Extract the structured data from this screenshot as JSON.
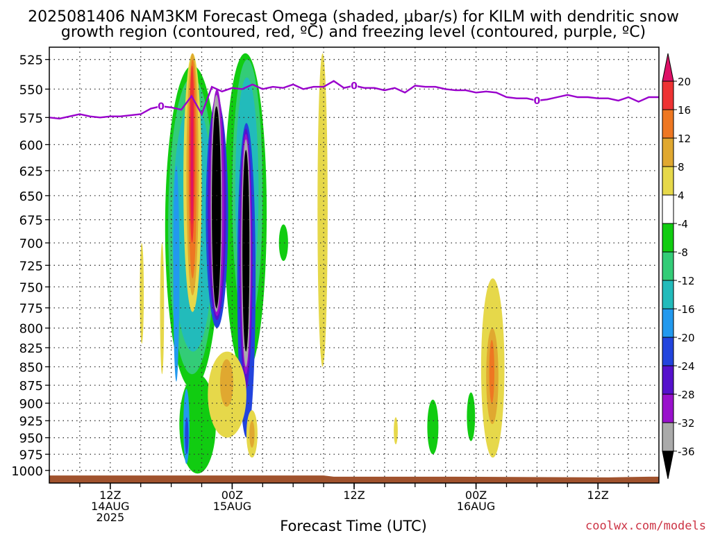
{
  "title_line1": "2025081406 NAM3KM Forecast Omega (shaded, μbar/s) for KILM with dendritic snow",
  "title_line2": "growth region (contoured, red, ºC) and freezing level (contoured, purple, ºC)",
  "watermark": "coolwx.com/models",
  "colors": {
    "freezing_line": "#9900cc",
    "terrain": "#a0522d",
    "watermark": "#cc3344"
  },
  "chart_data": {
    "type": "heatmap",
    "xlabel": "Forecast Time (UTC)",
    "x_ticks": [
      {
        "t": 6,
        "lines": [
          "12Z",
          "14AUG",
          "2025"
        ]
      },
      {
        "t": 18,
        "lines": [
          "00Z",
          "15AUG"
        ]
      },
      {
        "t": 30,
        "lines": [
          "12Z"
        ]
      },
      {
        "t": 42,
        "lines": [
          "00Z",
          "16AUG"
        ]
      },
      {
        "t": 54,
        "lines": [
          "12Z"
        ]
      }
    ],
    "x_range_hours": [
      0,
      60
    ],
    "y_ticks": [
      525,
      550,
      575,
      600,
      625,
      650,
      675,
      700,
      725,
      750,
      775,
      800,
      825,
      850,
      875,
      900,
      925,
      950,
      975,
      1000
    ],
    "y_range_mb": [
      515,
      1020
    ],
    "y_scale": "log",
    "grid": true,
    "colorbar": {
      "labels": [
        "20",
        "16",
        "12",
        "8",
        "4",
        "-4",
        "-8",
        "-12",
        "-16",
        "-20",
        "-24",
        "-28",
        "-32",
        "-36"
      ],
      "bands": [
        {
          "color": "#dd1166"
        },
        {
          "color": "#ee3333"
        },
        {
          "color": "#ee7722"
        },
        {
          "color": "#e0a830"
        },
        {
          "color": "#e6d84a"
        },
        {
          "color": "#ffffff"
        },
        {
          "color": "#11cc11"
        },
        {
          "color": "#33cc77"
        },
        {
          "color": "#22bbbb"
        },
        {
          "color": "#2299ee"
        },
        {
          "color": "#2244dd"
        },
        {
          "color": "#5511cc"
        },
        {
          "color": "#9911cc"
        },
        {
          "color": "#aaaaaa"
        },
        {
          "color": "#000000"
        }
      ]
    },
    "freezing_level": {
      "label": "0",
      "label_at_hours": [
        11,
        30,
        48
      ],
      "points_hours_mb": [
        [
          0,
          575
        ],
        [
          1,
          576
        ],
        [
          2,
          574
        ],
        [
          3,
          572
        ],
        [
          4,
          574
        ],
        [
          5,
          575
        ],
        [
          6,
          574
        ],
        [
          7,
          574
        ],
        [
          8,
          573
        ],
        [
          9,
          572
        ],
        [
          10,
          567
        ],
        [
          11,
          565
        ],
        [
          12,
          566
        ],
        [
          13,
          568
        ],
        [
          14,
          556
        ],
        [
          15,
          572
        ],
        [
          16,
          548
        ],
        [
          17,
          552
        ],
        [
          18,
          549
        ],
        [
          19,
          550
        ],
        [
          20,
          546
        ],
        [
          21,
          550
        ],
        [
          22,
          548
        ],
        [
          23,
          549
        ],
        [
          24,
          546
        ],
        [
          25,
          550
        ],
        [
          26,
          548
        ],
        [
          27,
          548
        ],
        [
          28,
          543
        ],
        [
          29,
          549
        ],
        [
          30,
          547
        ],
        [
          31,
          549
        ],
        [
          32,
          549
        ],
        [
          33,
          551
        ],
        [
          34,
          549
        ],
        [
          35,
          553
        ],
        [
          36,
          547
        ],
        [
          37,
          548
        ],
        [
          38,
          548
        ],
        [
          39,
          550
        ],
        [
          40,
          551
        ],
        [
          41,
          551
        ],
        [
          42,
          553
        ],
        [
          43,
          552
        ],
        [
          44,
          553
        ],
        [
          45,
          557
        ],
        [
          46,
          558
        ],
        [
          47,
          558
        ],
        [
          48,
          560
        ],
        [
          49,
          559
        ],
        [
          50,
          557
        ],
        [
          51,
          555
        ],
        [
          52,
          557
        ],
        [
          53,
          557
        ],
        [
          54,
          558
        ],
        [
          55,
          558
        ],
        [
          56,
          560
        ],
        [
          57,
          557
        ],
        [
          58,
          561
        ],
        [
          59,
          557
        ],
        [
          60,
          557
        ]
      ]
    },
    "terrain_surface_mb": [
      [
        0,
        1008
      ],
      [
        27,
        1008
      ],
      [
        28,
        1010
      ],
      [
        40,
        1010
      ],
      [
        55,
        1011
      ],
      [
        59,
        1010
      ],
      [
        60,
        1010
      ]
    ],
    "omega_regions": [
      {
        "value": -6,
        "hours": [
          11.4,
          16.8
        ],
        "mb": [
          530,
          880
        ]
      },
      {
        "value": -6,
        "hours": [
          12.8,
          16.4
        ],
        "mb": [
          860,
          1005
        ]
      },
      {
        "value": -6,
        "hours": [
          17.2,
          21.4
        ],
        "mb": [
          520,
          860
        ]
      },
      {
        "value": -6,
        "hours": [
          22.6,
          23.5
        ],
        "mb": [
          680,
          720
        ]
      },
      {
        "value": -6,
        "hours": [
          37.2,
          38.3
        ],
        "mb": [
          895,
          975
        ]
      },
      {
        "value": -6,
        "hours": [
          41.1,
          41.9
        ],
        "mb": [
          885,
          955
        ]
      },
      {
        "value": -10,
        "hours": [
          11.7,
          16.4
        ],
        "mb": [
          540,
          860
        ]
      },
      {
        "value": -10,
        "hours": [
          18,
          21
        ],
        "mb": [
          525,
          800
        ]
      },
      {
        "value": -14,
        "hours": [
          12.1,
          16.2
        ],
        "mb": [
          560,
          830
        ]
      },
      {
        "value": -14,
        "hours": [
          18.3,
          20.6
        ],
        "mb": [
          540,
          770
        ]
      },
      {
        "value": -18,
        "hours": [
          12.2,
          12.8
        ],
        "mb": [
          620,
          870
        ]
      },
      {
        "value": -18,
        "hours": [
          13.2,
          13.8
        ],
        "mb": [
          880,
          990
        ]
      },
      {
        "value": -22,
        "hours": [
          13.35,
          13.7
        ],
        "mb": [
          920,
          975
        ]
      },
      {
        "value": -22,
        "hours": [
          15.4,
          17.6
        ],
        "mb": [
          560,
          800
        ]
      },
      {
        "value": -22,
        "hours": [
          18.5,
          20.3
        ],
        "mb": [
          580,
          950
        ]
      },
      {
        "value": -26,
        "hours": [
          15.6,
          17.4
        ],
        "mb": [
          555,
          790
        ]
      },
      {
        "value": -26,
        "hours": [
          18.7,
          20.0
        ],
        "mb": [
          585,
          880
        ]
      },
      {
        "value": -30,
        "hours": [
          15.8,
          17.2
        ],
        "mb": [
          550,
          785
        ]
      },
      {
        "value": -30,
        "hours": [
          18.8,
          19.9
        ],
        "mb": [
          590,
          860
        ]
      },
      {
        "value": -34,
        "hours": [
          15.9,
          17.0
        ],
        "mb": [
          555,
          780
        ]
      },
      {
        "value": -34,
        "hours": [
          18.9,
          19.8
        ],
        "mb": [
          595,
          850
        ]
      },
      {
        "value": -38,
        "hours": [
          16.0,
          16.9
        ],
        "mb": [
          565,
          775
        ]
      },
      {
        "value": -38,
        "hours": [
          19.0,
          19.7
        ],
        "mb": [
          605,
          830
        ]
      },
      {
        "value": 6,
        "hours": [
          13.2,
          15.0
        ],
        "mb": [
          520,
          780
        ]
      },
      {
        "value": 6,
        "hours": [
          8.9,
          9.3
        ],
        "mb": [
          700,
          820
        ]
      },
      {
        "value": 6,
        "hours": [
          10.9,
          11.3
        ],
        "mb": [
          700,
          860
        ]
      },
      {
        "value": 6,
        "hours": [
          15.6,
          19.4
        ],
        "mb": [
          830,
          950
        ]
      },
      {
        "value": 6,
        "hours": [
          19.4,
          20.5
        ],
        "mb": [
          910,
          980
        ]
      },
      {
        "value": 6,
        "hours": [
          26.4,
          27.4
        ],
        "mb": [
          520,
          850
        ]
      },
      {
        "value": 6,
        "hours": [
          33.9,
          34.3
        ],
        "mb": [
          920,
          960
        ]
      },
      {
        "value": 6,
        "hours": [
          42.5,
          44.8
        ],
        "mb": [
          740,
          980
        ]
      },
      {
        "value": 10,
        "hours": [
          13.5,
          14.7
        ],
        "mb": [
          520,
          760
        ]
      },
      {
        "value": 10,
        "hours": [
          16.8,
          18.1
        ],
        "mb": [
          840,
          905
        ]
      },
      {
        "value": 10,
        "hours": [
          19.7,
          20.2
        ],
        "mb": [
          925,
          965
        ]
      },
      {
        "value": 10,
        "hours": [
          43.0,
          44.2
        ],
        "mb": [
          800,
          930
        ]
      },
      {
        "value": 14,
        "hours": [
          13.7,
          14.5
        ],
        "mb": [
          525,
          740
        ]
      },
      {
        "value": 14,
        "hours": [
          43.3,
          43.8
        ],
        "mb": [
          815,
          900
        ]
      },
      {
        "value": 18,
        "hours": [
          13.8,
          14.3
        ],
        "mb": [
          530,
          700
        ]
      },
      {
        "value": 22,
        "hours": [
          13.95,
          14.15
        ],
        "mb": [
          560,
          680
        ]
      }
    ]
  }
}
